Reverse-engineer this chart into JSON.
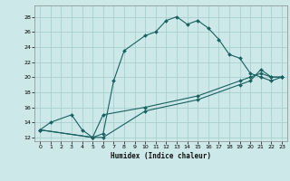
{
  "xlabel": "Humidex (Indice chaleur)",
  "bg_color": "#cce8e8",
  "grid_color": "#aad0d0",
  "line_color": "#1a6060",
  "xlim": [
    -0.5,
    23.5
  ],
  "ylim": [
    11.5,
    29.5
  ],
  "xticks": [
    0,
    1,
    2,
    3,
    4,
    5,
    6,
    7,
    8,
    9,
    10,
    11,
    12,
    13,
    14,
    15,
    16,
    17,
    18,
    19,
    20,
    21,
    22,
    23
  ],
  "yticks": [
    12,
    14,
    16,
    18,
    20,
    22,
    24,
    26,
    28
  ],
  "curve1_x": [
    0,
    1,
    3,
    4,
    5,
    6,
    7,
    8,
    10,
    11,
    12,
    13,
    14,
    15,
    16,
    17,
    18,
    19,
    20,
    21,
    22,
    23
  ],
  "curve1_y": [
    13,
    14,
    15,
    13,
    12,
    12.5,
    19.5,
    23.5,
    25.5,
    26,
    27.5,
    28,
    27,
    27.5,
    26.5,
    25,
    23,
    22.5,
    20.5,
    20,
    19.5,
    20
  ],
  "curve2_x": [
    0,
    5,
    6,
    10,
    15,
    19,
    20,
    21,
    22,
    23
  ],
  "curve2_y": [
    13,
    12,
    12,
    15.5,
    17,
    19,
    19.5,
    21,
    20,
    20
  ],
  "curve3_x": [
    0,
    5,
    6,
    10,
    15,
    19,
    20,
    21,
    22,
    23
  ],
  "curve3_y": [
    13,
    12,
    15,
    16,
    17.5,
    19.5,
    20,
    20.5,
    20,
    20
  ]
}
